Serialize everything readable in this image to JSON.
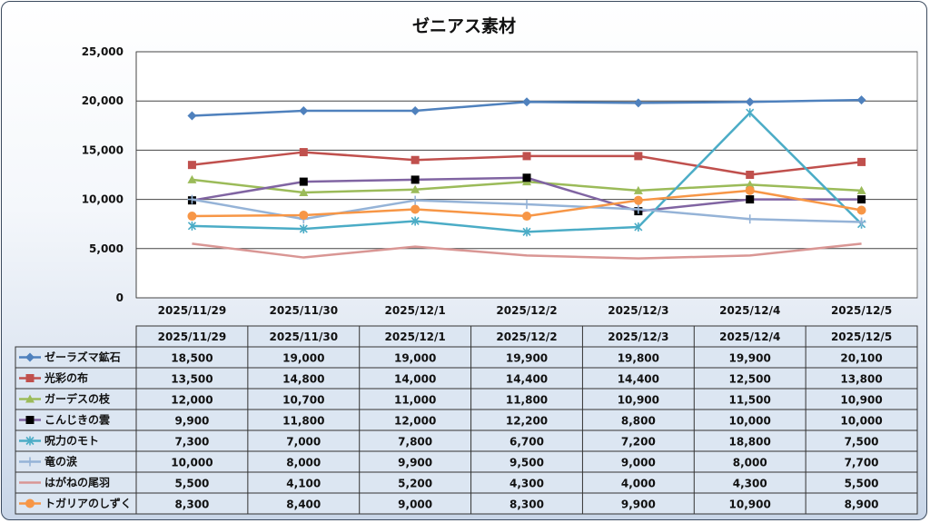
{
  "chart_data": {
    "type": "line",
    "title": "ゼニアス素材",
    "categories": [
      "2025/11/29",
      "2025/11/30",
      "2025/12/1",
      "2025/12/2",
      "2025/12/3",
      "2025/12/4",
      "2025/12/5"
    ],
    "ylim": [
      0,
      25000
    ],
    "yticks": [
      "0",
      "5,000",
      "10,000",
      "15,000",
      "20,000",
      "25,000"
    ],
    "ytick_values": [
      0,
      5000,
      10000,
      15000,
      20000,
      25000
    ],
    "grid": true,
    "legend": "data-table-below",
    "series": [
      {
        "name": "ゼーラズマ鉱石",
        "color": "#4f81bd",
        "marker": "diamond",
        "values": [
          18500,
          19000,
          19000,
          19900,
          19800,
          19900,
          20100
        ],
        "labels": [
          "18,500",
          "19,000",
          "19,000",
          "19,900",
          "19,800",
          "19,900",
          "20,100"
        ]
      },
      {
        "name": "光彩の布",
        "color": "#c0504d",
        "marker": "square",
        "values": [
          13500,
          14800,
          14000,
          14400,
          14400,
          12500,
          13800
        ],
        "labels": [
          "13,500",
          "14,800",
          "14,000",
          "14,400",
          "14,400",
          "12,500",
          "13,800"
        ]
      },
      {
        "name": "ガーデスの枝",
        "color": "#9bbb59",
        "marker": "triangle",
        "values": [
          12000,
          10700,
          11000,
          11800,
          10900,
          11500,
          10900
        ],
        "labels": [
          "12,000",
          "10,700",
          "11,000",
          "11,800",
          "10,900",
          "11,500",
          "10,900"
        ]
      },
      {
        "name": "こんじきの雲",
        "color": "#8064a2",
        "marker": "black-square",
        "values": [
          9900,
          11800,
          12000,
          12200,
          8800,
          10000,
          10000
        ],
        "labels": [
          "9,900",
          "11,800",
          "12,000",
          "12,200",
          "8,800",
          "10,000",
          "10,000"
        ]
      },
      {
        "name": "呪力のモト",
        "color": "#4bacc6",
        "marker": "star",
        "values": [
          7300,
          7000,
          7800,
          6700,
          7200,
          18800,
          7500
        ],
        "labels": [
          "7,300",
          "7,000",
          "7,800",
          "6,700",
          "7,200",
          "18,800",
          "7,500"
        ]
      },
      {
        "name": "竜の涙",
        "color": "#95b3d7",
        "marker": "plus",
        "values": [
          10000,
          8000,
          9900,
          9500,
          9000,
          8000,
          7700
        ],
        "labels": [
          "10,000",
          "8,000",
          "9,900",
          "9,500",
          "9,000",
          "8,000",
          "7,700"
        ]
      },
      {
        "name": "はがねの尾羽",
        "color": "#d99694",
        "marker": "none",
        "values": [
          5500,
          4100,
          5200,
          4300,
          4000,
          4300,
          5500
        ],
        "labels": [
          "5,500",
          "4,100",
          "5,200",
          "4,300",
          "4,000",
          "4,300",
          "5,500"
        ]
      },
      {
        "name": "トガリアのしずく",
        "color": "#f79646",
        "marker": "circle",
        "values": [
          8300,
          8400,
          9000,
          8300,
          9900,
          10900,
          8900
        ],
        "labels": [
          "8,300",
          "8,400",
          "9,000",
          "8,300",
          "9,900",
          "10,900",
          "8,900"
        ]
      }
    ]
  }
}
